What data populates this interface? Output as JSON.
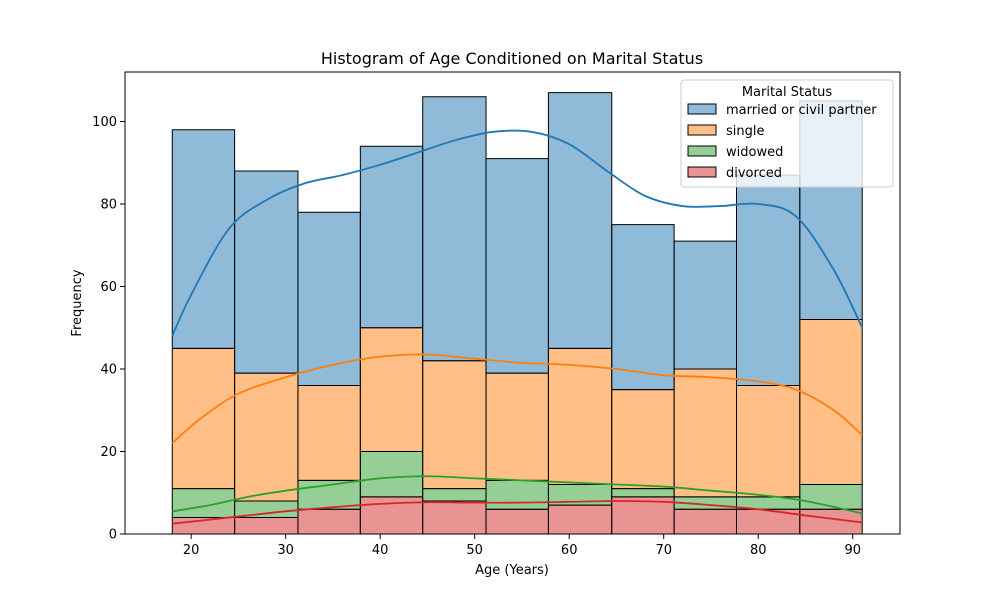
{
  "chart_data": {
    "type": "bar",
    "stacked": true,
    "title": "Histogram of Age Conditioned on Marital Status",
    "xlabel": "Age (Years)",
    "ylabel": "Frequency",
    "xlim": [
      13,
      95
    ],
    "ylim": [
      0,
      112
    ],
    "xticks": [
      20,
      30,
      40,
      50,
      60,
      70,
      80,
      90
    ],
    "yticks": [
      0,
      20,
      40,
      60,
      80,
      100
    ],
    "grid": false,
    "bin_edges": [
      18,
      24.6,
      31.3,
      37.9,
      44.5,
      51.2,
      57.8,
      64.5,
      71.1,
      77.7,
      84.4,
      91
    ],
    "legend": {
      "title": "Marital Status",
      "placement": "top-right"
    },
    "series": [
      {
        "name": "married or civil partner",
        "color": "#1f77b4",
        "values": [
          53,
          49,
          42,
          44,
          64,
          52,
          62,
          40,
          31,
          51,
          53
        ],
        "kde": [
          [
            18,
            48
          ],
          [
            20,
            58
          ],
          [
            24,
            74
          ],
          [
            28,
            81
          ],
          [
            32,
            85
          ],
          [
            36,
            87
          ],
          [
            40,
            89.5
          ],
          [
            44,
            92.5
          ],
          [
            48,
            95.5
          ],
          [
            52,
            97.5
          ],
          [
            56,
            97.5
          ],
          [
            60,
            94.5
          ],
          [
            64,
            88
          ],
          [
            68,
            82
          ],
          [
            72,
            79.5
          ],
          [
            76,
            79.5
          ],
          [
            80,
            80
          ],
          [
            84,
            77
          ],
          [
            88,
            64
          ],
          [
            91,
            50
          ]
        ]
      },
      {
        "name": "single",
        "color": "#ff7f0e",
        "values": [
          34,
          31,
          23,
          30,
          31,
          26,
          33,
          24,
          31,
          27,
          40
        ],
        "kde": [
          [
            18,
            22
          ],
          [
            21,
            28
          ],
          [
            25,
            34
          ],
          [
            30,
            38
          ],
          [
            35,
            41
          ],
          [
            40,
            43
          ],
          [
            45,
            43.5
          ],
          [
            50,
            42.5
          ],
          [
            55,
            41.5
          ],
          [
            60,
            41
          ],
          [
            65,
            40
          ],
          [
            70,
            38.5
          ],
          [
            75,
            38
          ],
          [
            80,
            37
          ],
          [
            84,
            35
          ],
          [
            88,
            30
          ],
          [
            91,
            24
          ]
        ]
      },
      {
        "name": "widowed",
        "color": "#2ca02c",
        "values": [
          7,
          4,
          7,
          11,
          3,
          7,
          5,
          2,
          3,
          3,
          6
        ],
        "kde": [
          [
            18,
            5.5
          ],
          [
            22,
            7
          ],
          [
            26,
            9
          ],
          [
            30,
            10.5
          ],
          [
            35,
            12
          ],
          [
            40,
            13.5
          ],
          [
            45,
            14
          ],
          [
            50,
            13.5
          ],
          [
            55,
            13
          ],
          [
            60,
            12.5
          ],
          [
            65,
            12
          ],
          [
            70,
            11.5
          ],
          [
            75,
            10.5
          ],
          [
            80,
            9.5
          ],
          [
            85,
            8
          ],
          [
            91,
            5
          ]
        ]
      },
      {
        "name": "divorced",
        "color": "#d62728",
        "values": [
          4,
          4,
          6,
          9,
          8,
          6,
          7,
          9,
          6,
          6,
          6
        ],
        "kde": [
          [
            18,
            2.5
          ],
          [
            22,
            3.5
          ],
          [
            26,
            4.5
          ],
          [
            30,
            5.5
          ],
          [
            35,
            6.5
          ],
          [
            40,
            7.3
          ],
          [
            45,
            7.7
          ],
          [
            50,
            7.6
          ],
          [
            55,
            7.6
          ],
          [
            60,
            7.8
          ],
          [
            65,
            8
          ],
          [
            70,
            7.8
          ],
          [
            75,
            7
          ],
          [
            80,
            6
          ],
          [
            85,
            4.5
          ],
          [
            91,
            2.8
          ]
        ]
      }
    ]
  }
}
